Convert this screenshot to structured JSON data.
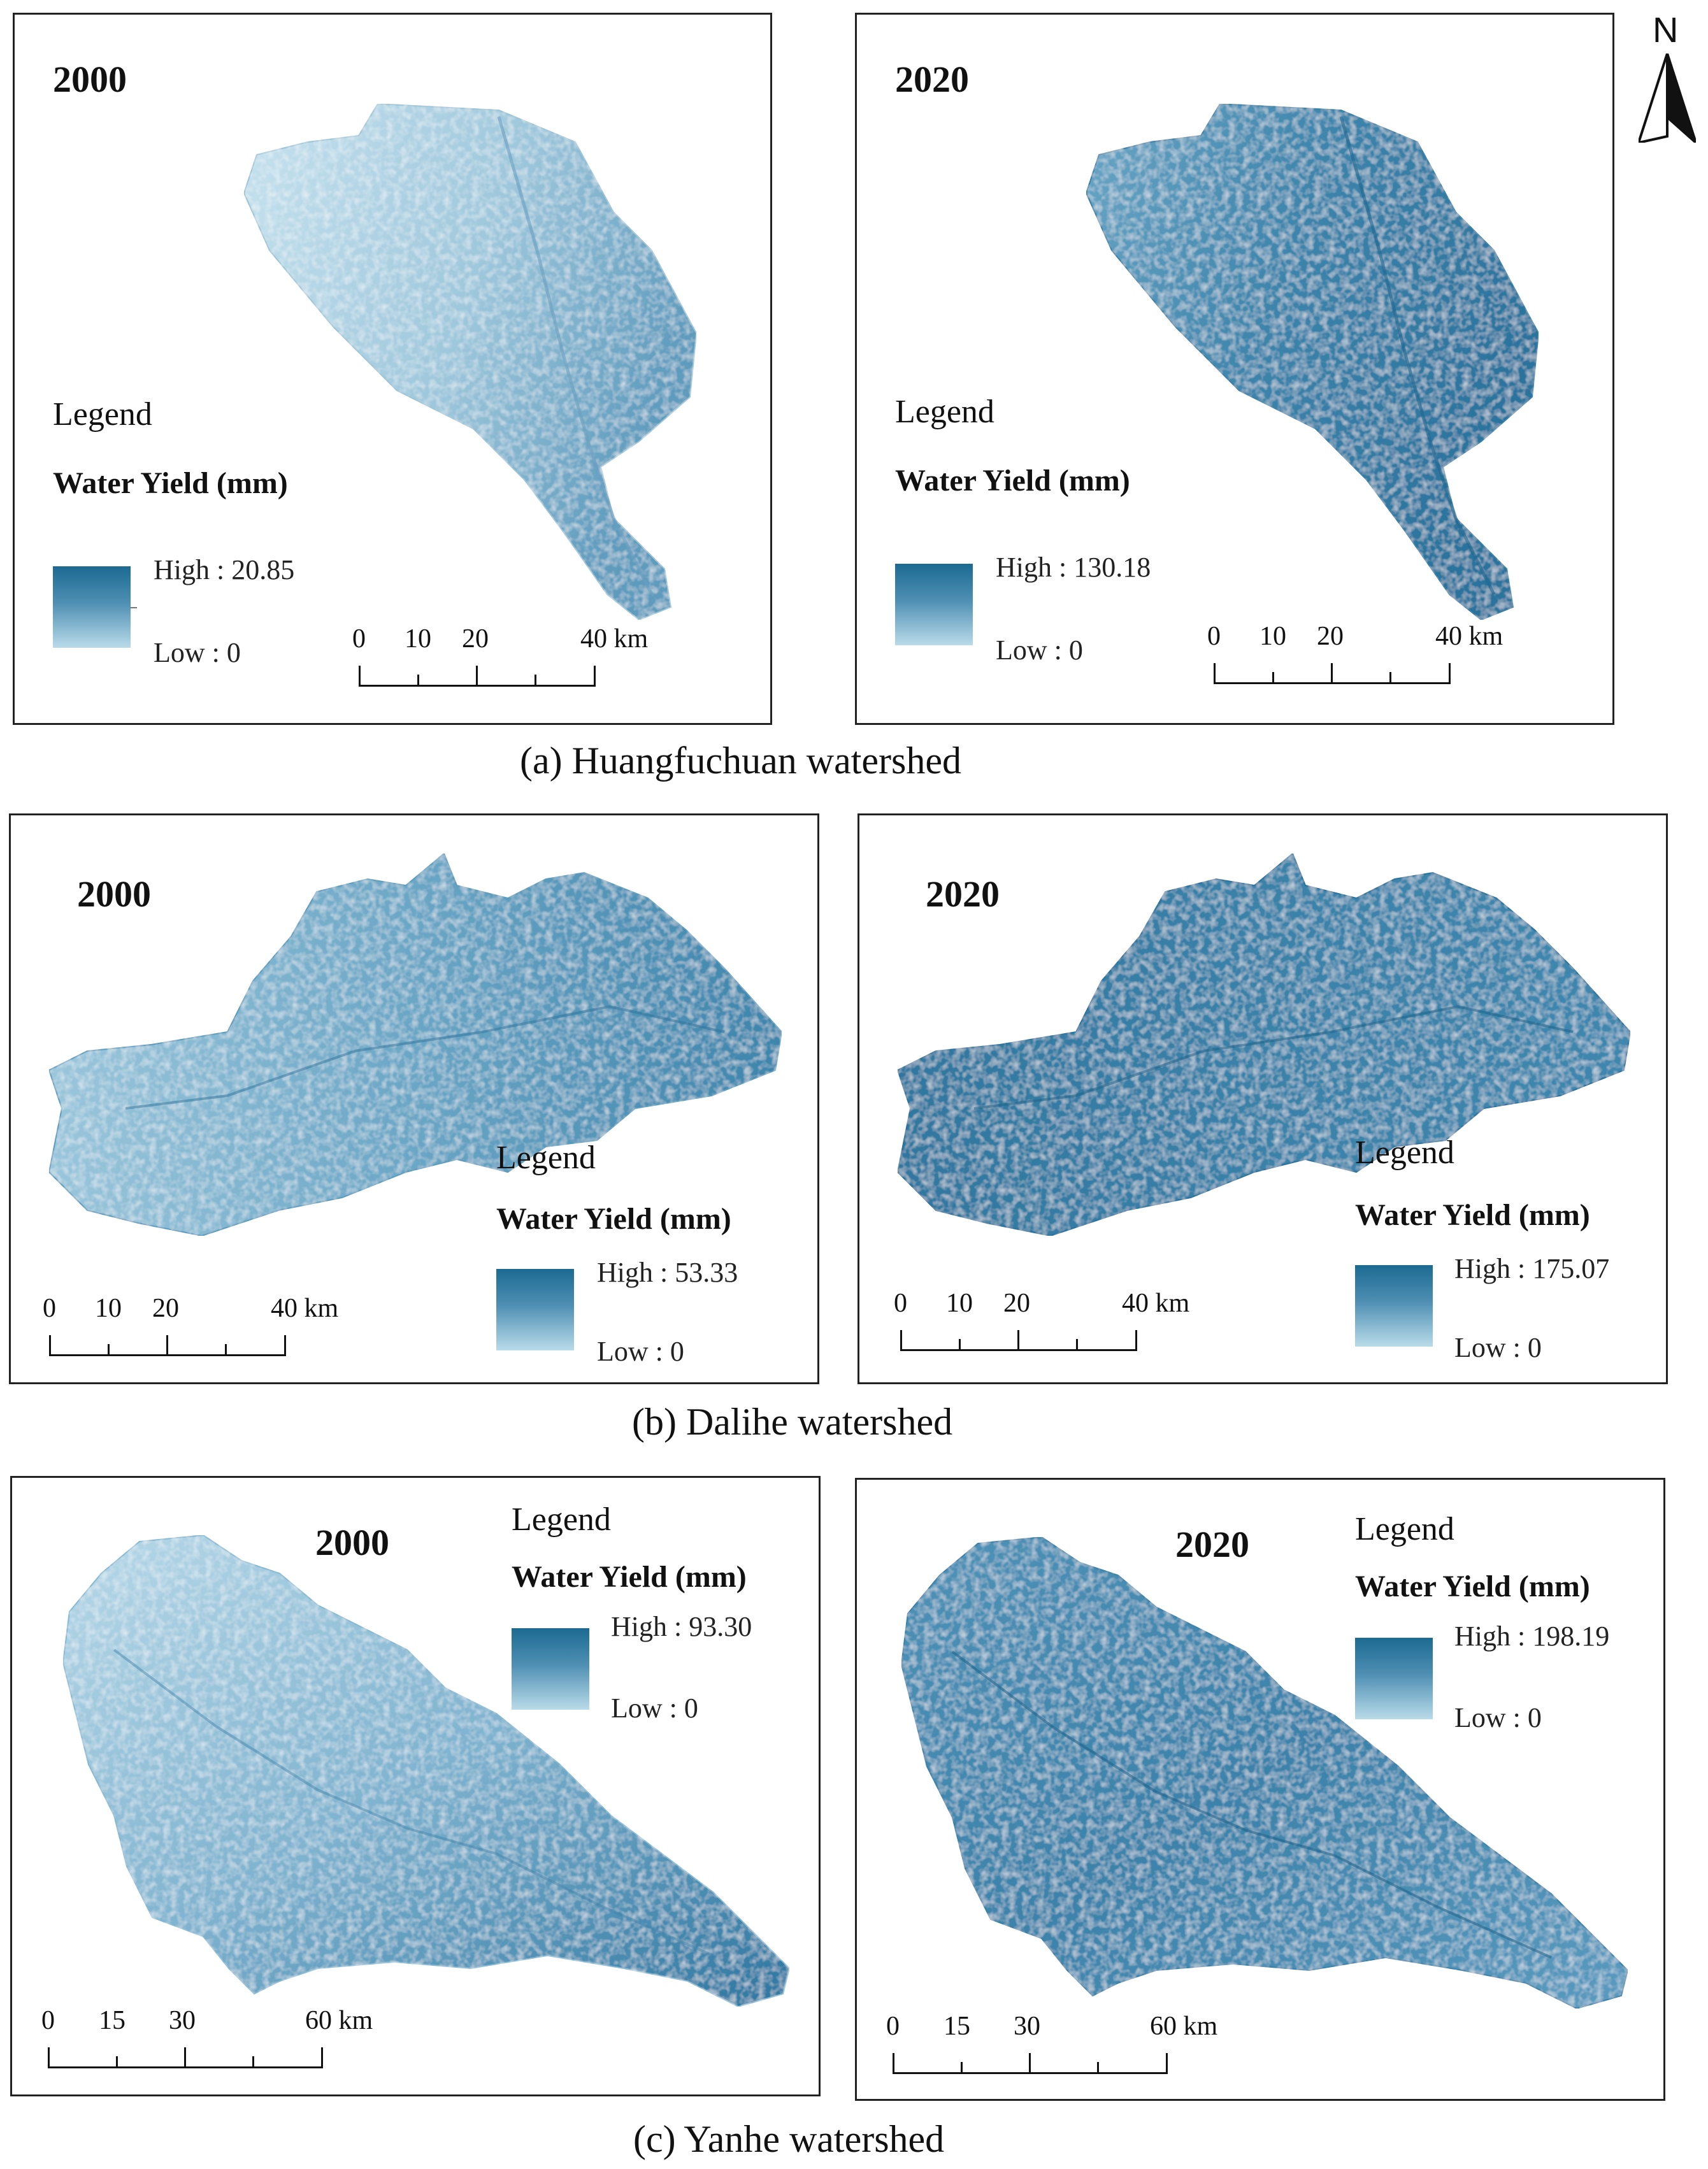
{
  "panels": [
    {
      "year": "2000",
      "legend_title": "Legend",
      "legend_variable": "Water Yield (mm)",
      "high": "High : 20.85",
      "low": "Low : 0",
      "scale": [
        "0",
        "10",
        "20",
        "40 km"
      ]
    },
    {
      "year": "2020",
      "legend_title": "Legend",
      "legend_variable": "Water Yield (mm)",
      "high": "High : 130.18",
      "low": "Low : 0",
      "scale": [
        "0",
        "10",
        "20",
        "40 km"
      ]
    },
    {
      "year": "2000",
      "legend_title": "Legend",
      "legend_variable": "Water Yield (mm)",
      "high": "High : 53.33",
      "low": "Low : 0",
      "scale": [
        "0",
        "10",
        "20",
        "40 km"
      ]
    },
    {
      "year": "2020",
      "legend_title": "Legend",
      "legend_variable": "Water Yield (mm)",
      "high": "High : 175.07",
      "low": "Low : 0",
      "scale": [
        "0",
        "10",
        "20",
        "40 km"
      ]
    },
    {
      "year": "2000",
      "legend_title": "Legend",
      "legend_variable": "Water Yield (mm)",
      "high": "High : 93.30",
      "low": "Low : 0",
      "scale": [
        "0",
        "15",
        "30",
        "60 km"
      ]
    },
    {
      "year": "2020",
      "legend_title": "Legend",
      "legend_variable": "Water Yield (mm)",
      "high": "High : 198.19",
      "low": "Low : 0",
      "scale": [
        "0",
        "15",
        "30",
        "60 km"
      ]
    }
  ],
  "captions": {
    "a": "(a) Huangfuchuan watershed",
    "b": "(b) Dalihe watershed",
    "c": "(c) Yanhe watershed"
  },
  "north_label": "N",
  "colors": {
    "ramp_high": "#1c6a92",
    "ramp_mid": "#4f8fb3",
    "ramp_low": "#b9dbe9",
    "light_fill_2000_a": "#a9cfe0",
    "dark_fill_2020_a": "#3f86ad"
  }
}
